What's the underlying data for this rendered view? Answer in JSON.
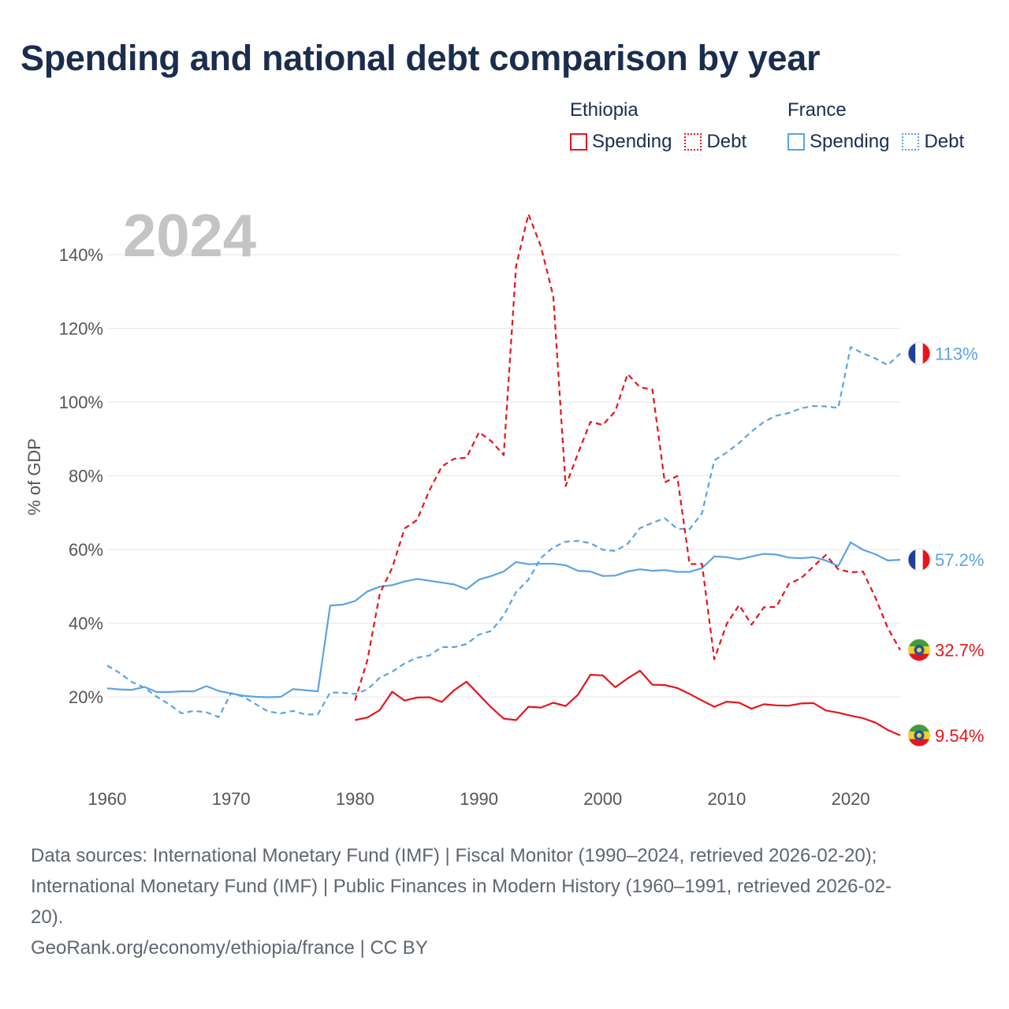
{
  "title": "Spending and national debt comparison by year",
  "legend": {
    "groups": [
      {
        "name": "Ethiopia",
        "items": [
          {
            "label": "Spending",
            "style": "solid"
          },
          {
            "label": "Debt",
            "style": "dotted"
          }
        ],
        "color": "#e8141b"
      },
      {
        "name": "France",
        "items": [
          {
            "label": "Spending",
            "style": "solid"
          },
          {
            "label": "Debt",
            "style": "dotted"
          }
        ],
        "color": "#5ba3e6"
      }
    ]
  },
  "colors": {
    "ethiopia": "#e8141b",
    "france": "#5ba3e6",
    "grid": "#e6e6e6",
    "year": "#c4c4c4"
  },
  "source": {
    "line1": "Data sources: International Monetary Fund (IMF) | Fiscal Monitor (1990–2024, retrieved 2026-02-20);",
    "line2": "International Monetary Fund (IMF) | Public Finances in Modern History (1960–1991, retrieved 2026-02-",
    "line3": "20).",
    "line4": "GeoRank.org/economy/ethiopia/france | CC BY"
  },
  "chart_data": {
    "type": "line",
    "title": "Spending and national debt comparison by year",
    "xlabel": "",
    "ylabel": "% of GDP",
    "year_label": "2024",
    "xlim": [
      1960,
      2024
    ],
    "ylim": [
      0,
      150
    ],
    "xticks": [
      1960,
      1970,
      1980,
      1990,
      2000,
      2010,
      2020
    ],
    "yticks": [
      20,
      40,
      60,
      80,
      100,
      120,
      140
    ],
    "ytick_labels": [
      "20%",
      "40%",
      "60%",
      "80%",
      "100%",
      "120%",
      "140%"
    ],
    "grid": true,
    "series": [
      {
        "name": "France Debt",
        "country": "France",
        "metric": "Debt",
        "color": "#5ba3e6",
        "dash": true,
        "end_label": "113%",
        "flag": "france",
        "x": [
          1960,
          1961,
          1962,
          1963,
          1964,
          1965,
          1966,
          1967,
          1968,
          1969,
          1970,
          1971,
          1972,
          1973,
          1974,
          1975,
          1976,
          1977,
          1978,
          1979,
          1980,
          1981,
          1982,
          1983,
          1984,
          1985,
          1986,
          1987,
          1988,
          1989,
          1990,
          1991,
          1992,
          1993,
          1994,
          1995,
          1996,
          1997,
          1998,
          1999,
          2000,
          2001,
          2002,
          2003,
          2004,
          2005,
          2006,
          2007,
          2008,
          2009,
          2010,
          2011,
          2012,
          2013,
          2014,
          2015,
          2016,
          2017,
          2018,
          2019,
          2020,
          2021,
          2022,
          2023,
          2024
        ],
        "y": [
          28.5,
          26.5,
          24,
          22.5,
          20,
          18,
          15.5,
          16.2,
          15.8,
          14.5,
          21,
          20,
          18,
          16,
          15.5,
          16.2,
          15.2,
          15.2,
          21.2,
          21.1,
          20.8,
          22,
          25.2,
          26.8,
          29.1,
          30.6,
          31.2,
          33.5,
          33.5,
          34.3,
          36.9,
          37.9,
          42.1,
          48.4,
          51.8,
          57.7,
          60.6,
          62.1,
          62.3,
          61.7,
          59.9,
          59.6,
          61.5,
          65.8,
          67.2,
          68.5,
          65.6,
          65.5,
          69.8,
          84.2,
          86.3,
          88.9,
          92,
          94.6,
          96.3,
          97,
          98.3,
          98.9,
          98.8,
          98.4,
          114.9,
          113.2,
          111.8,
          110,
          113.2
        ]
      },
      {
        "name": "France Spending",
        "country": "France",
        "metric": "Spending",
        "color": "#5ba3e6",
        "dash": false,
        "end_label": "57.2%",
        "flag": "france",
        "x": [
          1960,
          1961,
          1962,
          1963,
          1964,
          1965,
          1966,
          1967,
          1968,
          1969,
          1970,
          1971,
          1972,
          1973,
          1974,
          1975,
          1976,
          1977,
          1978,
          1979,
          1980,
          1981,
          1982,
          1983,
          1984,
          1985,
          1986,
          1987,
          1988,
          1989,
          1990,
          1991,
          1992,
          1993,
          1994,
          1995,
          1996,
          1997,
          1998,
          1999,
          2000,
          2001,
          2002,
          2003,
          2004,
          2005,
          2006,
          2007,
          2008,
          2009,
          2010,
          2011,
          2012,
          2013,
          2014,
          2015,
          2016,
          2017,
          2018,
          2019,
          2020,
          2021,
          2022,
          2023,
          2024
        ],
        "y": [
          22.3,
          22,
          21.9,
          22.7,
          21.3,
          21.3,
          21.5,
          21.5,
          22.9,
          21.6,
          20.9,
          20.3,
          20,
          19.9,
          20,
          22.1,
          21.8,
          21.5,
          44.8,
          45,
          46,
          48.6,
          49.9,
          50.3,
          51.3,
          52,
          51.5,
          51,
          50.5,
          49.2,
          51.8,
          52.8,
          54,
          56.6,
          56,
          56.1,
          56.1,
          55.7,
          54.2,
          54,
          52.8,
          52.9,
          54,
          54.6,
          54.2,
          54.4,
          53.9,
          53.9,
          54.9,
          58.1,
          57.9,
          57.3,
          58.1,
          58.8,
          58.6,
          57.8,
          57.6,
          57.9,
          57,
          55.5,
          61.9,
          59.9,
          58.7,
          57,
          57.2
        ]
      },
      {
        "name": "Ethiopia Debt",
        "country": "Ethiopia",
        "metric": "Debt",
        "color": "#e8141b",
        "dash": true,
        "end_label": "32.7%",
        "flag": "ethiopia",
        "x": [
          1980,
          1981,
          1982,
          1983,
          1984,
          1985,
          1986,
          1987,
          1988,
          1989,
          1990,
          1991,
          1992,
          1993,
          1994,
          1995,
          1996,
          1997,
          1998,
          1999,
          2000,
          2001,
          2002,
          2003,
          2004,
          2005,
          2006,
          2007,
          2008,
          2009,
          2010,
          2011,
          2012,
          2013,
          2014,
          2015,
          2016,
          2017,
          2018,
          2019,
          2020,
          2021,
          2022,
          2023,
          2024
        ],
        "y": [
          19,
          30,
          48,
          55,
          65.7,
          68,
          76,
          82.5,
          84.6,
          84.9,
          91.8,
          89.4,
          85.6,
          136.9,
          151,
          142.2,
          128.7,
          77.2,
          86.1,
          94.6,
          93.8,
          97.5,
          107.6,
          104,
          103.4,
          78.2,
          79.9,
          56,
          56.1,
          30.2,
          39.8,
          44.9,
          39.6,
          44.3,
          44.4,
          50.6,
          52.2,
          55.4,
          58.5,
          54.6,
          53.8,
          54,
          46.9,
          38.6,
          32.7
        ]
      },
      {
        "name": "Ethiopia Spending",
        "country": "Ethiopia",
        "metric": "Spending",
        "color": "#e8141b",
        "dash": false,
        "end_label": "9.54%",
        "flag": "ethiopia",
        "x": [
          1980,
          1981,
          1982,
          1983,
          1984,
          1985,
          1986,
          1987,
          1988,
          1989,
          1990,
          1991,
          1992,
          1993,
          1994,
          1995,
          1996,
          1997,
          1998,
          1999,
          2000,
          2001,
          2002,
          2003,
          2004,
          2005,
          2006,
          2007,
          2008,
          2009,
          2010,
          2011,
          2012,
          2013,
          2014,
          2015,
          2016,
          2017,
          2018,
          2019,
          2020,
          2021,
          2022,
          2023,
          2024
        ],
        "y": [
          13.7,
          14.4,
          16.4,
          21.4,
          19,
          19.8,
          19.9,
          18.6,
          21.8,
          24.1,
          20.6,
          17.1,
          14.1,
          13.7,
          17.3,
          17.1,
          18.4,
          17.5,
          20.6,
          26,
          25.8,
          22.6,
          25,
          27.1,
          23.3,
          23.2,
          22.4,
          20.8,
          19,
          17.3,
          18.7,
          18.4,
          16.8,
          18,
          17.7,
          17.6,
          18.2,
          18.3,
          16.3,
          15.7,
          14.9,
          14.2,
          13,
          11,
          9.54
        ]
      }
    ]
  }
}
